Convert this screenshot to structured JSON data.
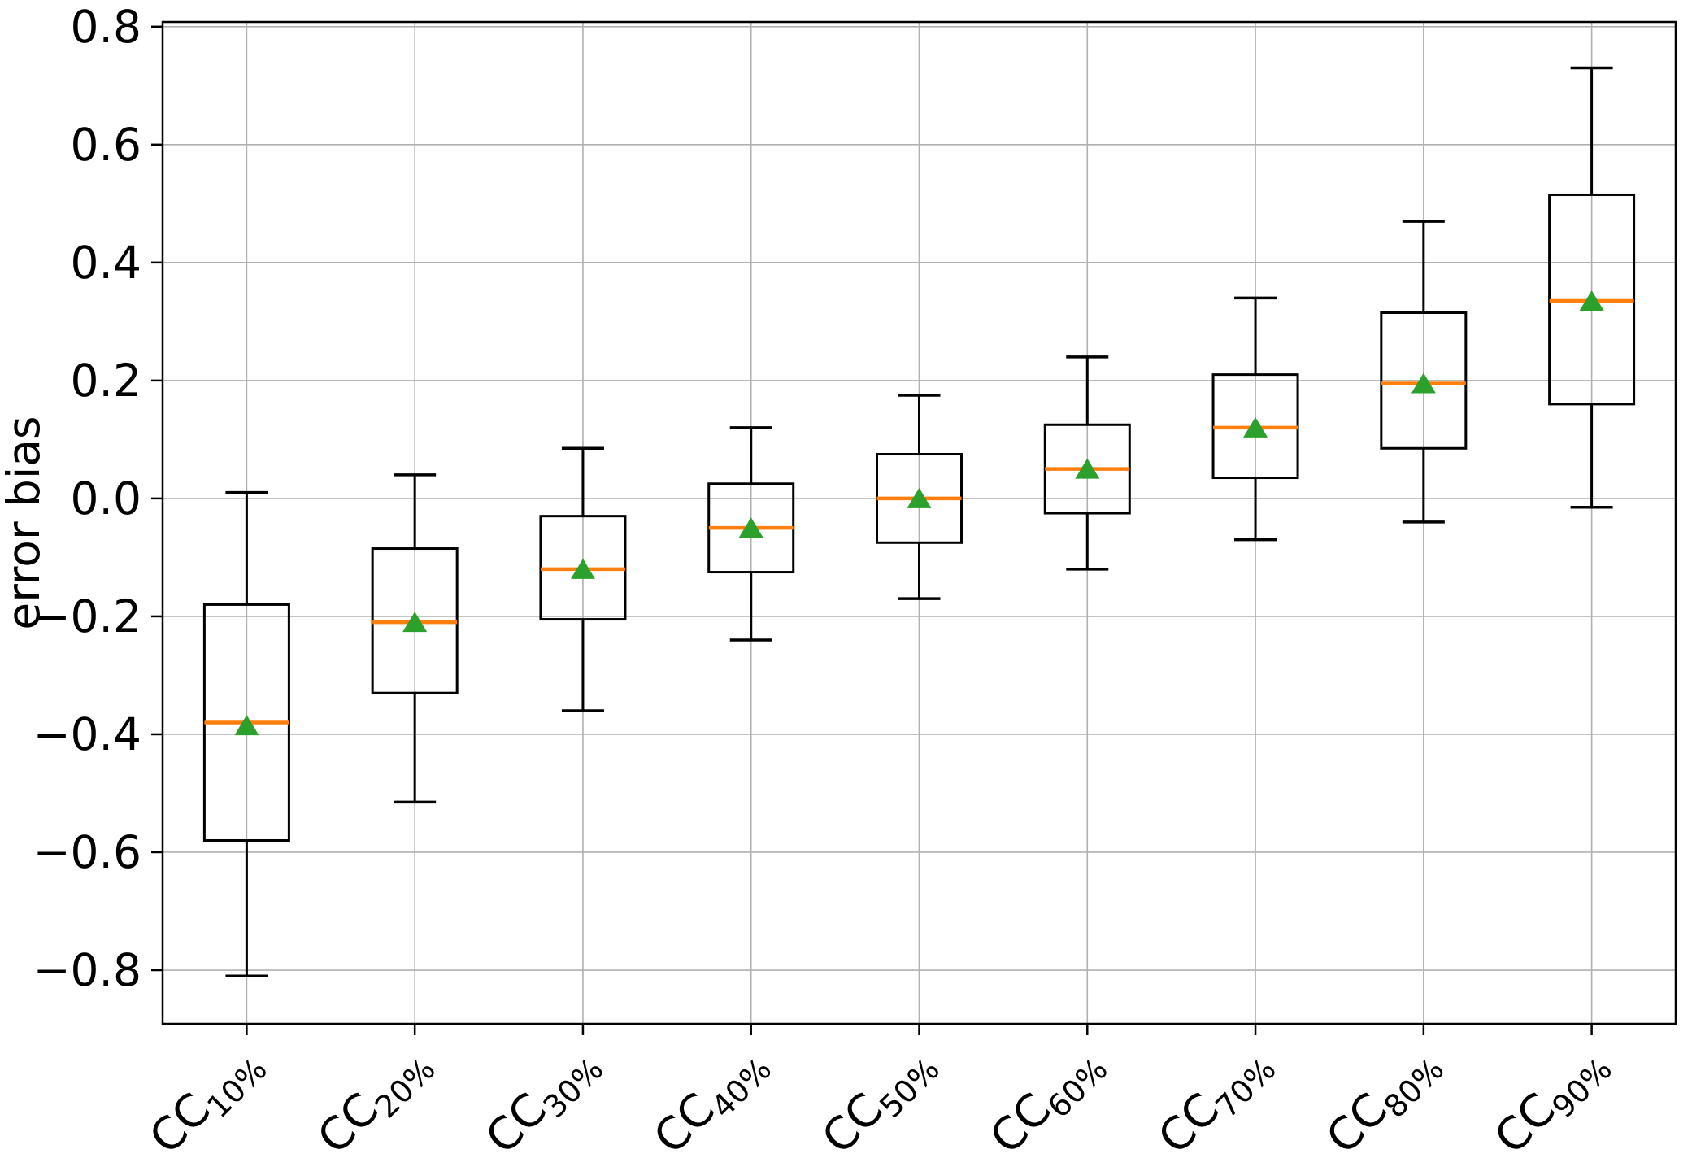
{
  "chart_data": {
    "type": "box",
    "title": "",
    "xlabel": "",
    "ylabel": "error bias",
    "ylim": [
      -0.891,
      0.808
    ],
    "yticks": [
      0.8,
      0.6,
      0.4,
      0.2,
      0.0,
      -0.2,
      -0.4,
      -0.6,
      -0.8
    ],
    "ytick_labels": [
      "0.8",
      "0.6",
      "0.4",
      "0.2",
      "0.0",
      "−0.2",
      "−0.4",
      "−0.6",
      "−0.8"
    ],
    "grid": true,
    "legend_position": "none",
    "categories": [
      "CC10%",
      "CC20%",
      "CC30%",
      "CC40%",
      "CC50%",
      "CC60%",
      "CC70%",
      "CC80%",
      "CC90%"
    ],
    "category_format": {
      "prefix": "CC",
      "subscripts": [
        "10%",
        "20%",
        "30%",
        "40%",
        "50%",
        "60%",
        "70%",
        "80%",
        "90%"
      ],
      "rotation_deg": 45
    },
    "series": [
      {
        "label": "CC10%",
        "whisker_low": -0.81,
        "q1": -0.58,
        "median": -0.38,
        "q3": -0.18,
        "whisker_high": 0.01,
        "mean": -0.385
      },
      {
        "label": "CC20%",
        "whisker_low": -0.515,
        "q1": -0.33,
        "median": -0.21,
        "q3": -0.085,
        "whisker_high": 0.04,
        "mean": -0.21
      },
      {
        "label": "CC30%",
        "whisker_low": -0.36,
        "q1": -0.205,
        "median": -0.12,
        "q3": -0.03,
        "whisker_high": 0.085,
        "mean": -0.12
      },
      {
        "label": "CC40%",
        "whisker_low": -0.24,
        "q1": -0.125,
        "median": -0.05,
        "q3": 0.025,
        "whisker_high": 0.12,
        "mean": -0.05
      },
      {
        "label": "CC50%",
        "whisker_low": -0.17,
        "q1": -0.075,
        "median": 0.0,
        "q3": 0.075,
        "whisker_high": 0.175,
        "mean": 0.0
      },
      {
        "label": "CC60%",
        "whisker_low": -0.12,
        "q1": -0.025,
        "median": 0.05,
        "q3": 0.125,
        "whisker_high": 0.24,
        "mean": 0.05
      },
      {
        "label": "CC70%",
        "whisker_low": -0.07,
        "q1": 0.035,
        "median": 0.12,
        "q3": 0.21,
        "whisker_high": 0.34,
        "mean": 0.12
      },
      {
        "label": "CC80%",
        "whisker_low": -0.04,
        "q1": 0.085,
        "median": 0.195,
        "q3": 0.315,
        "whisker_high": 0.47,
        "mean": 0.195
      },
      {
        "label": "CC90%",
        "whisker_low": -0.015,
        "q1": 0.16,
        "median": 0.335,
        "q3": 0.515,
        "whisker_high": 0.73,
        "mean": 0.335
      }
    ],
    "colors": {
      "median": "#ff7f0e",
      "mean_marker": "#2ca02c",
      "box_edge": "#000000",
      "whisker": "#000000",
      "grid": "#b0b0b0",
      "spine": "#000000",
      "background": "#ffffff"
    },
    "markers": {
      "mean": "triangle-up"
    }
  }
}
